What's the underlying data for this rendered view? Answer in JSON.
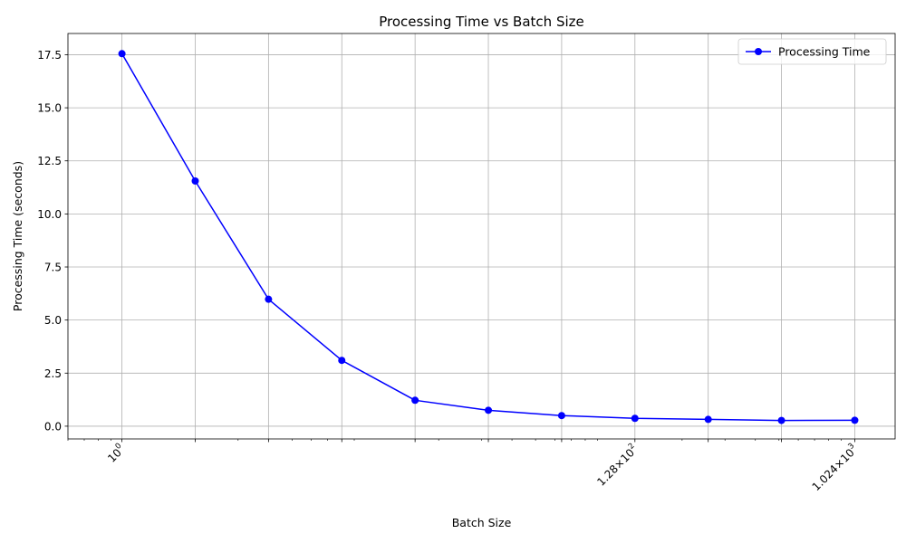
{
  "chart_data": {
    "type": "line",
    "title": "Processing Time vs Batch Size",
    "xlabel": "Batch Size",
    "ylabel": "Processing Time (seconds)",
    "x_scale": "log2",
    "xlim": [
      0.6,
      1500
    ],
    "ylim": [
      -0.6,
      18.5
    ],
    "grid": true,
    "legend_position": "top-right",
    "x_ticks": [
      1,
      2,
      4,
      8,
      16,
      32,
      64,
      128,
      256,
      512,
      1024
    ],
    "x_tick_labels": [
      {
        "value": 1,
        "mantissa": "",
        "base": "10",
        "exp": "0"
      },
      {
        "value": 128,
        "mantissa": "1.28×",
        "base": "10",
        "exp": "2"
      },
      {
        "value": 1024,
        "mantissa": "1.024×",
        "base": "10",
        "exp": "3"
      }
    ],
    "y_ticks": [
      0.0,
      2.5,
      5.0,
      7.5,
      10.0,
      12.5,
      15.0,
      17.5
    ],
    "y_tick_labels": [
      "0.0",
      "2.5",
      "5.0",
      "7.5",
      "10.0",
      "12.5",
      "15.0",
      "17.5"
    ],
    "series": [
      {
        "name": "Processing Time",
        "color": "#0000ff",
        "marker": "circle",
        "x": [
          1,
          2,
          4,
          8,
          16,
          32,
          64,
          128,
          256,
          512,
          1024
        ],
        "y": [
          17.55,
          11.55,
          5.98,
          3.1,
          1.22,
          0.75,
          0.5,
          0.37,
          0.32,
          0.27,
          0.28
        ]
      }
    ]
  }
}
